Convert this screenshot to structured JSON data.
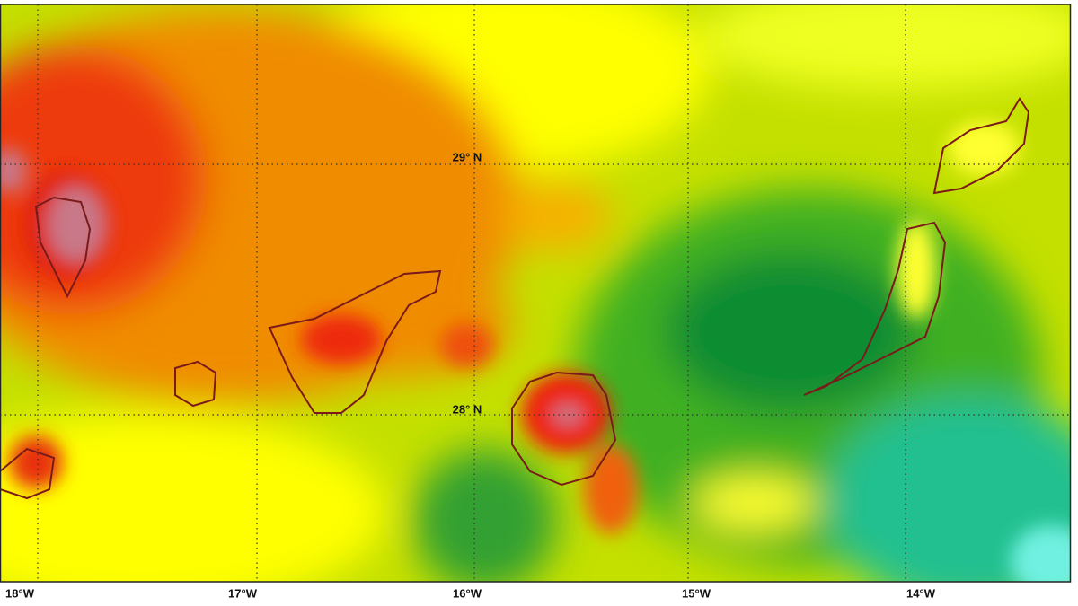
{
  "map": {
    "lat_labels": [
      "29° N",
      "28° N"
    ],
    "lon_labels": [
      "18°W",
      "17°W",
      "16°W",
      "15°W",
      "14°W"
    ]
  }
}
